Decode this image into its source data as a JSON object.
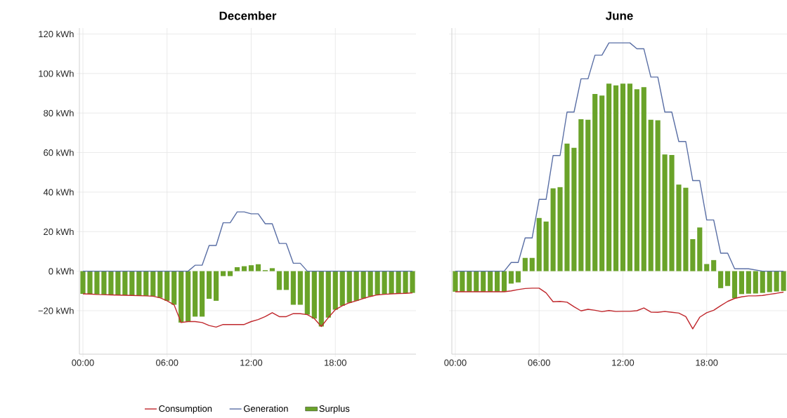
{
  "chart_data": [
    {
      "type": "bar",
      "title": "December",
      "x": [
        0,
        0.5,
        1,
        1.5,
        2,
        2.5,
        3,
        3.5,
        4,
        4.5,
        5,
        5.5,
        6,
        6.5,
        7,
        7.5,
        8,
        8.5,
        9,
        9.5,
        10,
        10.5,
        11,
        11.5,
        12,
        12.5,
        13,
        13.5,
        14,
        14.5,
        15,
        15.5,
        16,
        16.5,
        17,
        17.5,
        18,
        18.5,
        19,
        19.5,
        20,
        20.5,
        21,
        21.5,
        22,
        22.5,
        23,
        23.5
      ],
      "xlim": [
        -0.25,
        23.75
      ],
      "ylim": [
        -42,
        123
      ],
      "xticks": [
        {
          "value": 0,
          "label": "00:00"
        },
        {
          "value": 6,
          "label": "06:00"
        },
        {
          "value": 12,
          "label": "12:00"
        },
        {
          "value": 18,
          "label": "18:00"
        }
      ],
      "yticks": [
        {
          "value": -20,
          "label": "−20 kWh"
        },
        {
          "value": 0,
          "label": "0 kWh"
        },
        {
          "value": 20,
          "label": "20 kWh"
        },
        {
          "value": 40,
          "label": "40 kWh"
        },
        {
          "value": 60,
          "label": "60 kWh"
        },
        {
          "value": 80,
          "label": "80 kWh"
        },
        {
          "value": 100,
          "label": "100 kWh"
        },
        {
          "value": 120,
          "label": "120 kWh"
        }
      ],
      "grid": true,
      "legend": "bottom",
      "marker": "none",
      "line_style": "solid",
      "series": [
        {
          "name": "Surplus",
          "color": "#6aa329",
          "values": [
            -11.5,
            -11.6,
            -11.8,
            -11.9,
            -12,
            -12.1,
            -12.2,
            -12.3,
            -12.4,
            -12.5,
            -12.7,
            -13.5,
            -15,
            -17,
            -26,
            -25.5,
            -23,
            -23,
            -14,
            -15,
            -2.5,
            -2.5,
            2,
            2.5,
            3,
            3.5,
            0.5,
            1.5,
            -9.5,
            -9.5,
            -17,
            -17,
            -22,
            -24,
            -28,
            -23.5,
            -19.5,
            -17.5,
            -16,
            -15,
            -13.8,
            -12.8,
            -12,
            -11.7,
            -11.5,
            -11.3,
            -11.2,
            -11
          ]
        },
        {
          "name": "Generation",
          "type": "line",
          "color": "#5a6fa5",
          "values": [
            0,
            0,
            0,
            0,
            0,
            0,
            0,
            0,
            0,
            0,
            0,
            0,
            0,
            0,
            0,
            0,
            3,
            3,
            13,
            13,
            24.5,
            24.5,
            30,
            30,
            29,
            29,
            24,
            24,
            14,
            14,
            4,
            4,
            0,
            0,
            0,
            0,
            0,
            0,
            0,
            0,
            0,
            0,
            0,
            0,
            0,
            0,
            0,
            0
          ]
        },
        {
          "name": "Consumption",
          "type": "line",
          "color": "#c0282d",
          "values": [
            -11.5,
            -11.6,
            -11.8,
            -11.9,
            -12,
            -12.1,
            -12.2,
            -12.3,
            -12.4,
            -12.5,
            -12.7,
            -13.5,
            -15,
            -17,
            -26,
            -25.5,
            -25.5,
            -26,
            -27.5,
            -28.3,
            -27,
            -27,
            -27,
            -27,
            -25.5,
            -24.5,
            -23,
            -21,
            -23,
            -23,
            -21.5,
            -21.5,
            -22,
            -24,
            -28,
            -23.5,
            -19.5,
            -17.5,
            -16,
            -15,
            -13.8,
            -12.8,
            -12,
            -11.7,
            -11.5,
            -11.3,
            -11.2,
            -11
          ]
        }
      ]
    },
    {
      "type": "bar",
      "title": "June",
      "x": [
        0,
        0.5,
        1,
        1.5,
        2,
        2.5,
        3,
        3.5,
        4,
        4.5,
        5,
        5.5,
        6,
        6.5,
        7,
        7.5,
        8,
        8.5,
        9,
        9.5,
        10,
        10.5,
        11,
        11.5,
        12,
        12.5,
        13,
        13.5,
        14,
        14.5,
        15,
        15.5,
        16,
        16.5,
        17,
        17.5,
        18,
        18.5,
        19,
        19.5,
        20,
        20.5,
        21,
        21.5,
        22,
        22.5,
        23,
        23.5
      ],
      "xlim": [
        -0.25,
        23.75
      ],
      "ylim": [
        -42,
        123
      ],
      "xticks": [
        {
          "value": 0,
          "label": "00:00"
        },
        {
          "value": 6,
          "label": "06:00"
        },
        {
          "value": 12,
          "label": "12:00"
        },
        {
          "value": 18,
          "label": "18:00"
        }
      ],
      "yticks": [
        {
          "value": -20,
          "label": null
        },
        {
          "value": 0,
          "label": null
        },
        {
          "value": 20,
          "label": null
        },
        {
          "value": 40,
          "label": null
        },
        {
          "value": 60,
          "label": null
        },
        {
          "value": 80,
          "label": null
        },
        {
          "value": 100,
          "label": null
        },
        {
          "value": 120,
          "label": null
        }
      ],
      "grid": true,
      "tick_labels": "x",
      "marker": "none",
      "line_style": "solid",
      "series": [
        {
          "color": "#6aa329",
          "values": [
            -10.4,
            -10.4,
            -10.4,
            -10.4,
            -10.4,
            -10.4,
            -10.4,
            -10.4,
            -6.3,
            -5.7,
            6.7,
            6.7,
            26.9,
            25.1,
            41.9,
            42.5,
            64.5,
            62.4,
            76.9,
            76.6,
            89.6,
            88.8,
            94.9,
            94,
            94.9,
            94.9,
            92,
            93.1,
            76.6,
            76.3,
            59,
            58.8,
            43.8,
            42.2,
            16.2,
            22.1,
            3.6,
            5.6,
            -8.6,
            -7.5,
            -13.7,
            -11.6,
            -11.4,
            -11.3,
            -11,
            -10.6,
            -10.3,
            -10
          ]
        },
        {
          "type": "line",
          "color": "#5a6fa5",
          "values": [
            0,
            0,
            0,
            0,
            0,
            0,
            0,
            0,
            4.4,
            4.4,
            16.8,
            16.8,
            36.3,
            36.3,
            58.5,
            58.5,
            80.5,
            80.5,
            97.3,
            97.3,
            109.3,
            109.3,
            115.5,
            115.5,
            115.5,
            115.5,
            112.5,
            112.5,
            98.2,
            98.2,
            80.5,
            80.5,
            65.6,
            65.6,
            45.8,
            45.8,
            25.9,
            25.9,
            9.1,
            9.1,
            1.2,
            1.2,
            1.2,
            0.6,
            0,
            0,
            0,
            0
          ]
        },
        {
          "type": "line",
          "color": "#c0282d",
          "values": [
            -10.4,
            -10.4,
            -10.4,
            -10.4,
            -10.4,
            -10.4,
            -10.4,
            -10.4,
            -10,
            -9.3,
            -8.8,
            -8.6,
            -8.6,
            -11,
            -15.5,
            -15.3,
            -15.7,
            -18,
            -20.1,
            -19.3,
            -19.8,
            -20.5,
            -19.9,
            -20.4,
            -20.3,
            -20.3,
            -20,
            -18.6,
            -20.7,
            -20.8,
            -20.4,
            -20.8,
            -21.2,
            -23,
            -29.2,
            -23.3,
            -21,
            -19.8,
            -17.5,
            -15.3,
            -13.8,
            -13,
            -12.5,
            -12.5,
            -12.3,
            -11.7,
            -11.2,
            -10.6
          ]
        }
      ]
    }
  ]
}
